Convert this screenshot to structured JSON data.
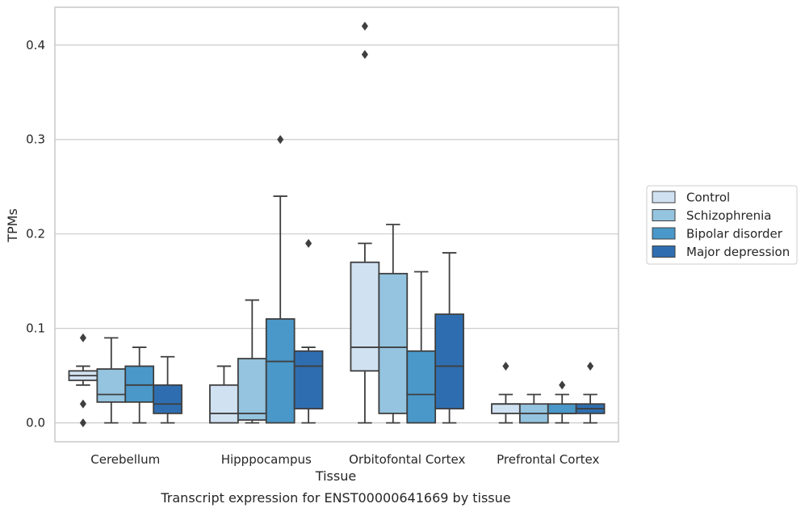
{
  "caption": "Transcript expression for ENST00000641669 by tissue",
  "chart_data": {
    "type": "boxplot",
    "xlabel": "Tissue",
    "ylabel": "TPMs",
    "ylim": [
      -0.02,
      0.44
    ],
    "yticks": [
      0.0,
      0.1,
      0.2,
      0.3,
      0.4
    ],
    "ytick_labels": [
      "0.0",
      "0.1",
      "0.2",
      "0.3",
      "0.4"
    ],
    "grid": "horizontal",
    "legend_position": "right",
    "categories": [
      "Cerebellum",
      "Hipppocampus",
      "Orbitofontal Cortex",
      "Prefrontal Cortex"
    ],
    "series": [
      {
        "name": "Control",
        "color": "#d0e1f2",
        "boxes": [
          {
            "whislo": 0.04,
            "q1": 0.045,
            "med": 0.05,
            "q3": 0.055,
            "whishi": 0.06,
            "fliers": [
              0.09,
              0.02,
              0.0
            ]
          },
          {
            "whislo": 0.0,
            "q1": 0.0,
            "med": 0.01,
            "q3": 0.04,
            "whishi": 0.06,
            "fliers": []
          },
          {
            "whislo": 0.0,
            "q1": 0.055,
            "med": 0.08,
            "q3": 0.17,
            "whishi": 0.19,
            "fliers": [
              0.42,
              0.39
            ]
          },
          {
            "whislo": 0.0,
            "q1": 0.01,
            "med": 0.02,
            "q3": 0.02,
            "whishi": 0.03,
            "fliers": [
              0.06
            ]
          }
        ]
      },
      {
        "name": "Schizophrenia",
        "color": "#94c4df",
        "boxes": [
          {
            "whislo": 0.0,
            "q1": 0.022,
            "med": 0.03,
            "q3": 0.057,
            "whishi": 0.09,
            "fliers": []
          },
          {
            "whislo": 0.0,
            "q1": 0.003,
            "med": 0.01,
            "q3": 0.068,
            "whishi": 0.13,
            "fliers": []
          },
          {
            "whislo": 0.0,
            "q1": 0.01,
            "med": 0.08,
            "q3": 0.158,
            "whishi": 0.21,
            "fliers": []
          },
          {
            "whislo": 0.0,
            "q1": 0.0,
            "med": 0.01,
            "q3": 0.02,
            "whishi": 0.03,
            "fliers": []
          }
        ]
      },
      {
        "name": "Bipolar disorder",
        "color": "#4a98c9",
        "boxes": [
          {
            "whislo": 0.0,
            "q1": 0.022,
            "med": 0.04,
            "q3": 0.06,
            "whishi": 0.08,
            "fliers": []
          },
          {
            "whislo": 0.0,
            "q1": 0.0,
            "med": 0.065,
            "q3": 0.11,
            "whishi": 0.24,
            "fliers": [
              0.3
            ]
          },
          {
            "whislo": 0.0,
            "q1": 0.0,
            "med": 0.03,
            "q3": 0.076,
            "whishi": 0.16,
            "fliers": []
          },
          {
            "whislo": 0.0,
            "q1": 0.01,
            "med": 0.01,
            "q3": 0.02,
            "whishi": 0.03,
            "fliers": [
              0.04
            ]
          }
        ]
      },
      {
        "name": "Major depression",
        "color": "#2e6eb0",
        "boxes": [
          {
            "whislo": 0.0,
            "q1": 0.01,
            "med": 0.02,
            "q3": 0.04,
            "whishi": 0.07,
            "fliers": []
          },
          {
            "whislo": 0.0,
            "q1": 0.015,
            "med": 0.06,
            "q3": 0.076,
            "whishi": 0.08,
            "fliers": [
              0.19
            ]
          },
          {
            "whislo": 0.0,
            "q1": 0.015,
            "med": 0.06,
            "q3": 0.115,
            "whishi": 0.18,
            "fliers": []
          },
          {
            "whislo": 0.0,
            "q1": 0.01,
            "med": 0.015,
            "q3": 0.02,
            "whishi": 0.03,
            "fliers": [
              0.06
            ]
          }
        ]
      }
    ]
  }
}
